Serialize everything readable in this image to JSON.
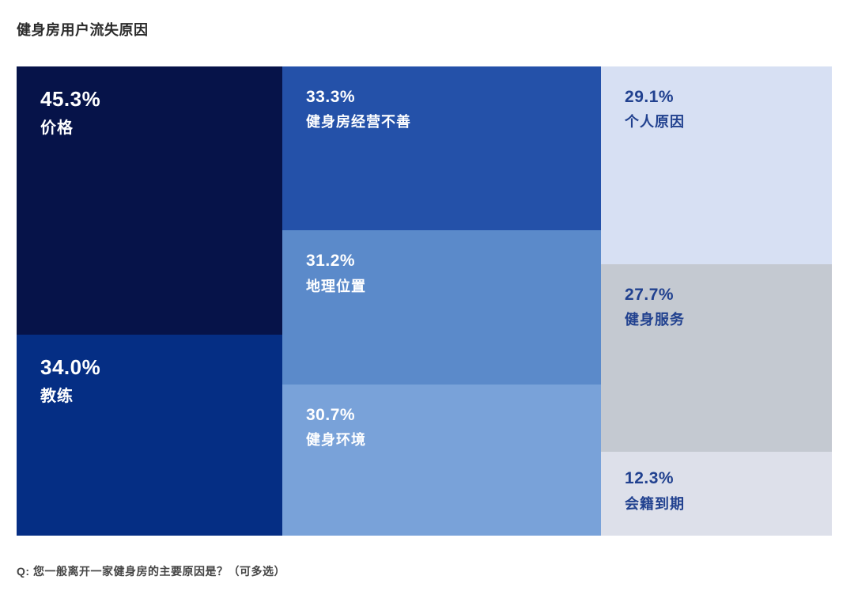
{
  "page": {
    "title": "健身房用户流失原因",
    "footnote": "Q: 您一般离开一家健身房的主要原因是？（可多选）"
  },
  "chart_data": {
    "type": "treemap",
    "title": "健身房用户流失原因",
    "unit": "%",
    "question": "Q: 您一般离开一家健身房的主要原因是？（可多选）",
    "items": [
      {
        "label": "价格",
        "value": 45.3
      },
      {
        "label": "教练",
        "value": 34.0
      },
      {
        "label": "健身房经营不善",
        "value": 33.3
      },
      {
        "label": "地理位置",
        "value": 31.2
      },
      {
        "label": "健身环境",
        "value": 30.7
      },
      {
        "label": "个人原因",
        "value": 29.1
      },
      {
        "label": "健身服务",
        "value": 27.7
      },
      {
        "label": "会籍到期",
        "value": 12.3
      }
    ],
    "layout": "3 columns: [价格, 教练] | [健身房经营不善, 地理位置, 健身环境] | [个人原因, 健身服务, 会籍到期]; cell areas proportional to values"
  },
  "treemap": {
    "columns": [
      {
        "cells": [
          {
            "pct": "45.3%",
            "label": "价格",
            "bg": "#061349",
            "text": "#ffffff"
          },
          {
            "pct": "34.0%",
            "label": "教练",
            "bg": "#052e84",
            "text": "#ffffff"
          }
        ]
      },
      {
        "cells": [
          {
            "pct": "33.3%",
            "label": "健身房经营不善",
            "bg": "#2451a9",
            "text": "#ffffff"
          },
          {
            "pct": "31.2%",
            "label": "地理位置",
            "bg": "#5b8aca",
            "text": "#ffffff"
          },
          {
            "pct": "30.7%",
            "label": "健身环境",
            "bg": "#79a2d9",
            "text": "#ffffff"
          }
        ]
      },
      {
        "cells": [
          {
            "pct": "29.1%",
            "label": "个人原因",
            "bg": "#d7e0f3",
            "text": "#21418f"
          },
          {
            "pct": "27.7%",
            "label": "健身服务",
            "bg": "#c4c9d1",
            "text": "#21418f"
          },
          {
            "pct": "12.3%",
            "label": "会籍到期",
            "bg": "#dde0ea",
            "text": "#21418f"
          }
        ]
      }
    ]
  }
}
